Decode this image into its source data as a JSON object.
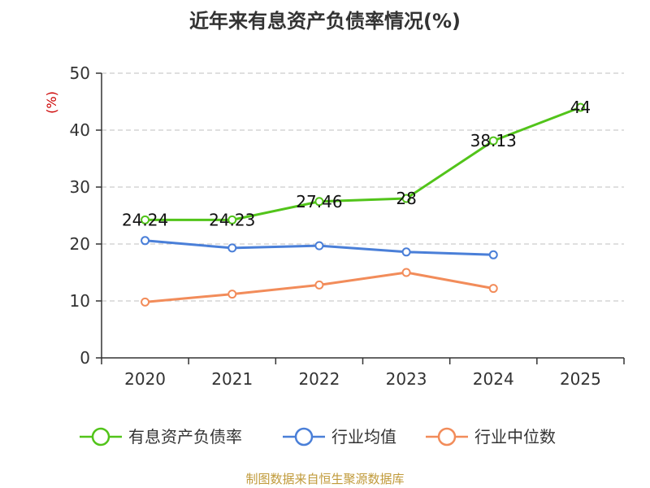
{
  "chart_data": {
    "type": "line",
    "title": "近年来有息资产负债率情况(%)",
    "ylabel": "(%)",
    "xlabel": "",
    "categories": [
      "2020",
      "2021",
      "2022",
      "2023",
      "2024",
      "2025"
    ],
    "ylim": [
      0,
      50
    ],
    "yticks": [
      0,
      10,
      20,
      30,
      40,
      50
    ],
    "grid": true,
    "legend_position": "bottom",
    "series": [
      {
        "name": "有息资产负债率",
        "color": "#52c41a",
        "values": [
          24.24,
          24.23,
          27.46,
          28,
          38.13,
          44
        ],
        "labels": [
          "24.24",
          "24.23",
          "27.46",
          "28",
          "38.13",
          "44"
        ]
      },
      {
        "name": "行业均值",
        "color": "#4a7fd8",
        "values": [
          20.6,
          19.3,
          19.7,
          18.6,
          18.1,
          null
        ]
      },
      {
        "name": "行业中位数",
        "color": "#f28c5a",
        "values": [
          9.8,
          11.2,
          12.8,
          15.0,
          12.2,
          null
        ]
      }
    ]
  },
  "source_note": "制图数据来自恒生聚源数据库"
}
